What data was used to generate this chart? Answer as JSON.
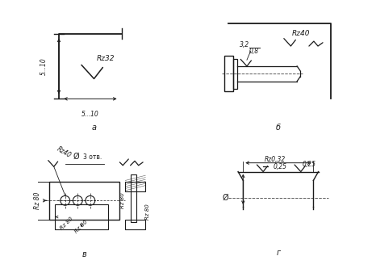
{
  "bg_color": "#ffffff",
  "lc": "#1a1a1a",
  "panel_a": "a",
  "panel_b": "б",
  "panel_c": "в",
  "panel_d": "г",
  "rz32": "Rz32",
  "rz40": "Rz40",
  "rz80": "Rz 80",
  "rz0_32": "Rz0,32",
  "v025": "0,25",
  "v3_2": "3,2",
  "v0_8": "0,8",
  "dim510": "5...10",
  "otv": "3 отв.",
  "phi": "Ø"
}
